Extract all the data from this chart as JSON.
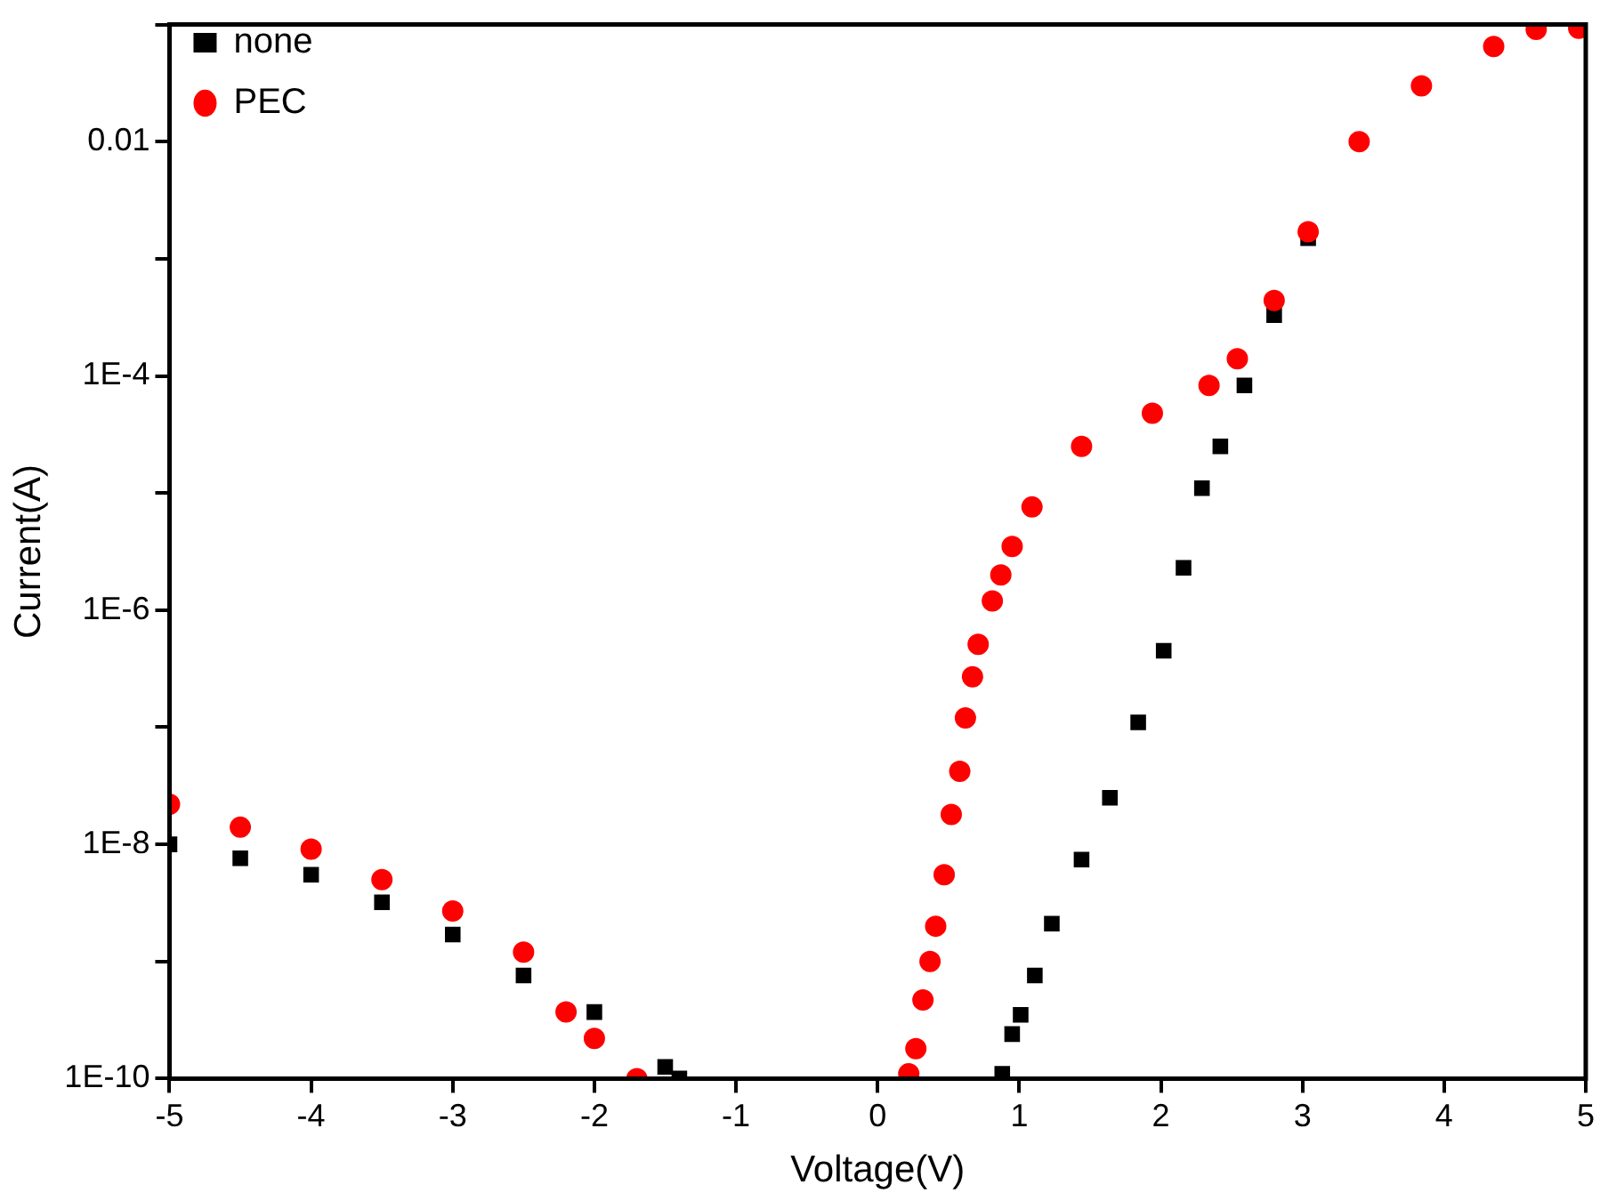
{
  "chart_data": {
    "type": "scatter",
    "xlabel": "Voltage(V)",
    "ylabel": "Current(A)",
    "log": "y",
    "grid": false,
    "legend": "top left",
    "xlim": [
      -5,
      5
    ],
    "xticks": [
      -5,
      -4,
      -3,
      -2,
      -1,
      0,
      1,
      2,
      3,
      4,
      5
    ],
    "ylim": [
      1e-10,
      0.1
    ],
    "yticks": [
      {
        "value": 1e-10,
        "label": "1E-10"
      },
      {
        "value": 1e-09,
        "label": null
      },
      {
        "value": 1e-08,
        "label": "1E-8"
      },
      {
        "value": 1e-07,
        "label": null
      },
      {
        "value": 1e-06,
        "label": "1E-6"
      },
      {
        "value": 1e-05,
        "label": null
      },
      {
        "value": 0.0001,
        "label": "1E-4"
      },
      {
        "value": 0.001,
        "label": null
      },
      {
        "value": 0.01,
        "label": "0.01"
      },
      {
        "value": 0.1,
        "label": null
      }
    ],
    "series": [
      {
        "name": "none",
        "color": "#000000",
        "marker": "square",
        "x": [
          -5,
          -4.5,
          -4,
          -3.5,
          -3,
          -2.5,
          -2,
          -1.5,
          -1.4,
          0.88,
          0.95,
          1.01,
          1.11,
          1.23,
          1.44,
          1.64,
          1.84,
          2.02,
          2.16,
          2.29,
          2.42,
          2.59,
          2.8,
          3.04
        ],
        "values": [
          1e-08,
          7.6e-09,
          5.5e-09,
          3.2e-09,
          1.7e-09,
          7.6e-10,
          3.7e-10,
          1.26e-10,
          1e-10,
          1.1e-10,
          2.4e-10,
          3.5e-10,
          7.6e-10,
          2.1e-09,
          7.4e-09,
          2.5e-08,
          1.1e-07,
          4.5e-07,
          2.3e-06,
          1.1e-05,
          2.5e-05,
          8.3e-05,
          0.00033,
          0.0015
        ]
      },
      {
        "name": "PEC",
        "color": "#ff0000",
        "marker": "circle",
        "x": [
          -5,
          -4.5,
          -4,
          -3.5,
          -3,
          -2.5,
          -2.2,
          -2,
          -1.7,
          0.22,
          0.27,
          0.32,
          0.37,
          0.41,
          0.47,
          0.52,
          0.58,
          0.62,
          0.67,
          0.71,
          0.81,
          0.87,
          0.95,
          1.09,
          1.44,
          1.94,
          2.34,
          2.54,
          2.8,
          3.04,
          3.4,
          3.84,
          4.35,
          4.65,
          4.95
        ],
        "values": [
          2.2e-08,
          1.4e-08,
          9.1e-09,
          5e-09,
          2.7e-09,
          1.2e-09,
          3.7e-10,
          2.2e-10,
          1e-10,
          1.1e-10,
          1.8e-10,
          4.7e-10,
          1e-09,
          2e-09,
          5.5e-09,
          1.8e-08,
          4.2e-08,
          1.2e-07,
          2.7e-07,
          5.1e-07,
          1.2e-06,
          2e-06,
          3.5e-06,
          7.6e-06,
          2.5e-05,
          4.8e-05,
          8.3e-05,
          0.00014,
          0.00044,
          0.0017,
          0.01,
          0.03,
          0.065,
          0.091,
          0.093
        ]
      }
    ]
  }
}
